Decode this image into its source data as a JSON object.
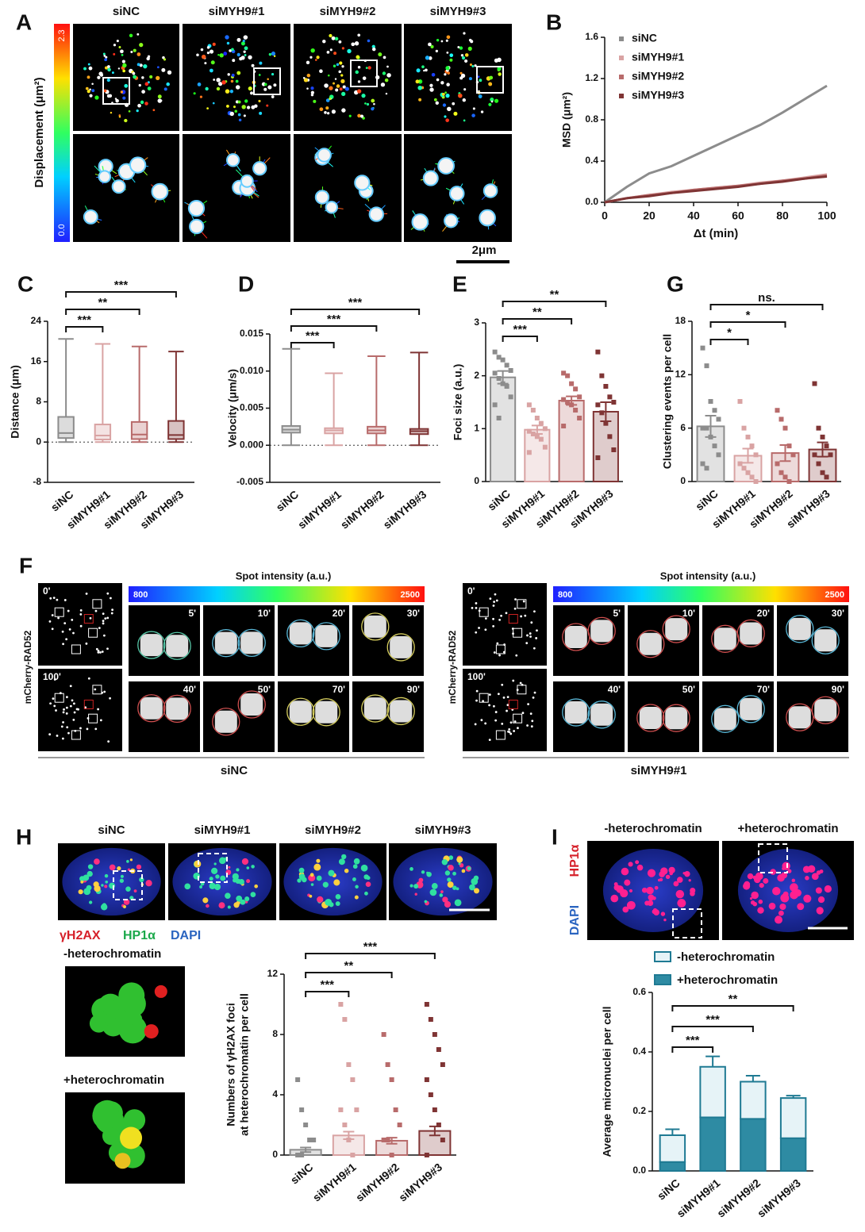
{
  "panel_a": {
    "label": "A",
    "columns": [
      "siNC",
      "siMYH9#1",
      "siMYH9#2",
      "siMYH9#3"
    ],
    "colorbar": {
      "title": "Displacement (μm²)",
      "max": "2.3",
      "min": "0.0"
    },
    "scale_bar": "2μm"
  },
  "panel_f": {
    "label": "F",
    "groups": [
      {
        "name": "siNC",
        "side_label": "mCherry-RAD52",
        "overview_times": [
          "0'",
          "100'"
        ],
        "colorbar": {
          "title": "Spot intensity (a.u.)",
          "min": "800",
          "max": "2500"
        },
        "times": [
          "5'",
          "10'",
          "20'",
          "30'",
          "40'",
          "50'",
          "70'",
          "90'"
        ]
      },
      {
        "name": "siMYH9#1",
        "side_label": "mCherry-RAD52",
        "overview_times": [
          "0'",
          "100'"
        ],
        "colorbar": {
          "title": "Spot intensity (a.u.)",
          "min": "800",
          "max": "2500"
        },
        "times": [
          "5'",
          "10'",
          "20'",
          "30'",
          "40'",
          "50'",
          "70'",
          "90'"
        ]
      }
    ]
  },
  "panel_h": {
    "label": "H",
    "columns": [
      "siNC",
      "siMYH9#1",
      "siMYH9#2",
      "siMYH9#3"
    ],
    "stains": [
      {
        "name": "γH2AX",
        "color": "#d6202a"
      },
      {
        "name": "HP1α",
        "color": "#1aa84a"
      },
      {
        "name": "DAPI",
        "color": "#2a64c0"
      }
    ],
    "insets": [
      "-heterochromatin",
      "+heterochromatin"
    ]
  },
  "panel_i": {
    "label": "I",
    "columns": [
      "-heterochromatin",
      "+heterochromatin"
    ],
    "stains": [
      {
        "name": "HP1α",
        "color": "#d6202a"
      },
      {
        "name": "DAPI",
        "color": "#2a64c0"
      }
    ]
  },
  "chart_data": [
    {
      "type": "line",
      "label": "B",
      "ylabel": "MSD (μm²)",
      "xlabel": "Δt (min)",
      "x": [
        0,
        10,
        20,
        30,
        40,
        50,
        60,
        70,
        80,
        90,
        100
      ],
      "xlim": [
        0,
        100
      ],
      "xticks": [
        0,
        20,
        40,
        60,
        80,
        100
      ],
      "ylim": [
        0,
        1.6
      ],
      "yticks": [
        {
          "value": 0,
          "label": "0.0"
        },
        0.4,
        0.8,
        1.2,
        1.6
      ],
      "series": [
        {
          "name": "siNC",
          "color": "#8c8c8c",
          "values": [
            0,
            0.15,
            0.28,
            0.35,
            0.45,
            0.55,
            0.65,
            0.75,
            0.87,
            1.0,
            1.13
          ]
        },
        {
          "name": "siMYH9#1",
          "color": "#d9a3a3",
          "values": [
            0,
            0.04,
            0.07,
            0.1,
            0.12,
            0.14,
            0.16,
            0.19,
            0.21,
            0.24,
            0.27
          ]
        },
        {
          "name": "siMYH9#2",
          "color": "#b86b6b",
          "values": [
            0,
            0.04,
            0.07,
            0.09,
            0.12,
            0.14,
            0.16,
            0.18,
            0.21,
            0.23,
            0.26
          ]
        },
        {
          "name": "siMYH9#3",
          "color": "#7f3434",
          "values": [
            0,
            0.04,
            0.06,
            0.09,
            0.11,
            0.13,
            0.15,
            0.18,
            0.2,
            0.23,
            0.25
          ]
        }
      ]
    },
    {
      "type": "box",
      "label": "C",
      "ylabel": "Distance (μm)",
      "categories": [
        "siNC",
        "siMYH9#1",
        "siMYH9#2",
        "siMYH9#3"
      ],
      "colors": [
        "#8c8c8c",
        "#d9a3a3",
        "#b86b6b",
        "#7f3434"
      ],
      "ylim": [
        -8,
        24
      ],
      "yticks": [
        -8,
        0,
        8,
        16,
        24
      ],
      "boxes": [
        {
          "min": 0,
          "q1": 0.8,
          "median": 1.8,
          "q3": 5,
          "max": 20.5
        },
        {
          "min": 0,
          "q1": 0.5,
          "median": 1.3,
          "q3": 3.5,
          "max": 19.5
        },
        {
          "min": 0,
          "q1": 0.6,
          "median": 1.5,
          "q3": 4,
          "max": 19
        },
        {
          "min": 0,
          "q1": 0.6,
          "median": 1.4,
          "q3": 4.2,
          "max": 18
        }
      ],
      "significance": [
        "***",
        "**",
        "***"
      ]
    },
    {
      "type": "box",
      "label": "D",
      "ylabel": "Velocity (μm/s)",
      "categories": [
        "siNC",
        "siMYH9#1",
        "siMYH9#2",
        "siMYH9#3"
      ],
      "colors": [
        "#8c8c8c",
        "#d9a3a3",
        "#b86b6b",
        "#7f3434"
      ],
      "ylim": [
        -0.005,
        0.015
      ],
      "yticks": [
        -0.005,
        {
          "value": 0,
          "label": "0.000"
        },
        0.005,
        {
          "value": 0.01,
          "label": "0.010"
        },
        0.015
      ],
      "boxes": [
        {
          "min": 0,
          "q1": 0.0017,
          "median": 0.0021,
          "q3": 0.0026,
          "max": 0.013
        },
        {
          "min": 0,
          "q1": 0.0016,
          "median": 0.002,
          "q3": 0.0023,
          "max": 0.0097
        },
        {
          "min": 0,
          "q1": 0.0016,
          "median": 0.002,
          "q3": 0.0025,
          "max": 0.012
        },
        {
          "min": 0,
          "q1": 0.0015,
          "median": 0.0019,
          "q3": 0.0022,
          "max": 0.0125
        }
      ],
      "significance": [
        "***",
        "***",
        "***"
      ]
    },
    {
      "type": "bar",
      "label": "E",
      "ylabel": "Foci size (a.u.)",
      "categories": [
        "siNC",
        "siMYH9#1",
        "siMYH9#2",
        "siMYH9#3"
      ],
      "colors": [
        "#8c8c8c",
        "#d9a3a3",
        "#b86b6b",
        "#7f3434"
      ],
      "ylim": [
        0,
        3
      ],
      "yticks": [
        0,
        1,
        2,
        3
      ],
      "values": [
        1.97,
        0.98,
        1.53,
        1.32
      ],
      "errors": [
        0.12,
        0.08,
        0.08,
        0.18
      ],
      "points": [
        [
          2.45,
          2.35,
          2.3,
          2.2,
          2.1,
          2.05,
          1.95,
          1.85,
          1.8,
          1.6,
          1.45,
          1.2
        ],
        [
          1.45,
          1.35,
          1.2,
          1.1,
          1.0,
          0.95,
          0.9,
          0.85,
          0.8,
          0.65,
          0.55
        ],
        [
          2.05,
          2.0,
          1.85,
          1.75,
          1.6,
          1.55,
          1.5,
          1.45,
          1.35,
          1.2,
          1.05
        ],
        [
          2.45,
          2.0,
          1.8,
          1.6,
          1.5,
          1.45,
          1.3,
          1.1,
          0.85,
          0.6,
          0.45
        ]
      ],
      "significance": [
        "***",
        "**",
        "**"
      ]
    },
    {
      "type": "bar",
      "label": "G",
      "ylabel": "Clustering events per cell",
      "categories": [
        "siNC",
        "siMYH9#1",
        "siMYH9#2",
        "siMYH9#3"
      ],
      "colors": [
        "#8c8c8c",
        "#d9a3a3",
        "#b86b6b",
        "#7f3434"
      ],
      "ylim": [
        0,
        18
      ],
      "yticks": [
        0,
        6,
        12,
        18
      ],
      "values": [
        6.2,
        2.9,
        3.2,
        3.6
      ],
      "errors": [
        1.2,
        0.8,
        0.9,
        0.8
      ],
      "points": [
        [
          15,
          13,
          9,
          8,
          7,
          6,
          6,
          5,
          4,
          3,
          2,
          1.5
        ],
        [
          9,
          6,
          5,
          4,
          3,
          2,
          1.5,
          1,
          0.5,
          0
        ],
        [
          8,
          7,
          6,
          4,
          3,
          2,
          1,
          0.5,
          0
        ],
        [
          11,
          6,
          5,
          4,
          3,
          3,
          2,
          1,
          0.5
        ]
      ],
      "significance": [
        "*",
        "*",
        "ns."
      ]
    },
    {
      "type": "bar",
      "ylabel": [
        "Numbers of γH2AX foci",
        "at heterochromatin per cell"
      ],
      "categories": [
        "siNC",
        "siMYH9#1",
        "siMYH9#2",
        "siMYH9#3"
      ],
      "colors": [
        "#8c8c8c",
        "#d9a3a3",
        "#b86b6b",
        "#7f3434"
      ],
      "ylim": [
        0,
        12
      ],
      "yticks": [
        0,
        4,
        8,
        12
      ],
      "values": [
        0.35,
        1.3,
        0.95,
        1.6
      ],
      "errors": [
        0.15,
        0.25,
        0.2,
        0.3
      ],
      "points": [
        [
          5,
          3,
          2,
          1,
          1,
          0,
          0
        ],
        [
          10,
          9,
          6,
          5,
          3,
          3,
          2,
          1,
          0
        ],
        [
          8,
          6,
          5,
          3,
          2,
          1,
          1,
          0
        ],
        [
          10,
          9,
          8,
          7,
          6,
          5,
          4,
          3,
          2,
          1,
          0
        ]
      ],
      "significance": [
        "***",
        "**",
        "***"
      ]
    },
    {
      "type": "stacked-bar",
      "ylabel": "Average micronuclei per cell",
      "categories": [
        "siNC",
        "siMYH9#1",
        "siMYH9#2",
        "siMYH9#3"
      ],
      "ylim": [
        0,
        0.6
      ],
      "yticks": [
        {
          "value": 0,
          "label": "0.0"
        },
        0.2,
        0.4,
        0.6
      ],
      "series": [
        {
          "name": "-heterochromatin",
          "color": "#e6f3f7",
          "values": [
            0.09,
            0.17,
            0.125,
            0.135
          ],
          "errors": [
            0.02,
            0.035,
            0.02,
            0.008
          ]
        },
        {
          "name": "+heterochromatin",
          "color": "#2e8ba3",
          "values": [
            0.03,
            0.18,
            0.175,
            0.11
          ],
          "errors": [
            0.005,
            0.045,
            0.045,
            0.005
          ]
        }
      ],
      "significance": [
        "***",
        "***",
        "**"
      ]
    }
  ]
}
